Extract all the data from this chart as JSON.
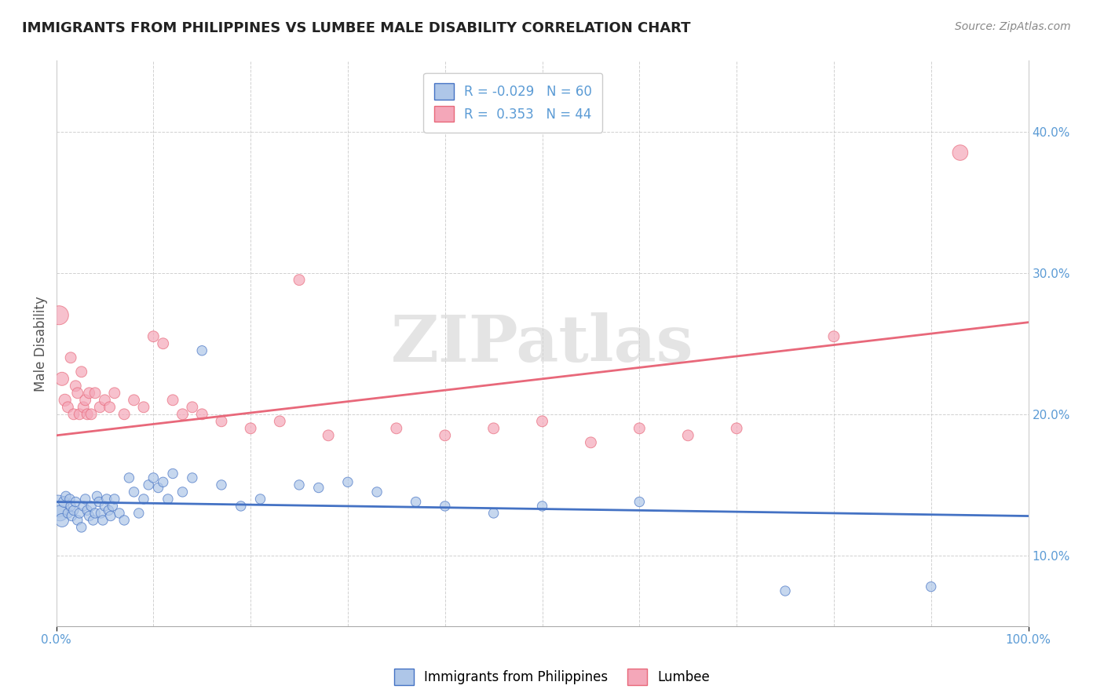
{
  "title": "IMMIGRANTS FROM PHILIPPINES VS LUMBEE MALE DISABILITY CORRELATION CHART",
  "source": "Source: ZipAtlas.com",
  "ylabel": "Male Disability",
  "legend_label1": "Immigrants from Philippines",
  "legend_label2": "Lumbee",
  "r1": -0.029,
  "n1": 60,
  "r2": 0.353,
  "n2": 44,
  "watermark": "ZIPatlas",
  "xlim": [
    0.0,
    100.0
  ],
  "ylim_pct": [
    5.0,
    45.0
  ],
  "yticks": [
    10.0,
    20.0,
    30.0,
    40.0
  ],
  "color_blue": "#AEC6E8",
  "color_pink": "#F4A7B9",
  "color_blue_line": "#4472C4",
  "color_pink_line": "#E8687A",
  "background_color": "#FFFFFF",
  "grid_color": "#CCCCCC",
  "title_color": "#222222",
  "axis_label_color": "#5B9BD5",
  "blue_scatter": [
    [
      0.2,
      13.5
    ],
    [
      0.4,
      13.0
    ],
    [
      0.6,
      12.5
    ],
    [
      0.8,
      13.8
    ],
    [
      1.0,
      14.2
    ],
    [
      1.2,
      13.0
    ],
    [
      1.4,
      14.0
    ],
    [
      1.5,
      13.5
    ],
    [
      1.6,
      12.8
    ],
    [
      1.8,
      13.2
    ],
    [
      2.0,
      13.8
    ],
    [
      2.2,
      12.5
    ],
    [
      2.4,
      13.0
    ],
    [
      2.6,
      12.0
    ],
    [
      2.8,
      13.5
    ],
    [
      3.0,
      14.0
    ],
    [
      3.2,
      13.2
    ],
    [
      3.4,
      12.8
    ],
    [
      3.6,
      13.5
    ],
    [
      3.8,
      12.5
    ],
    [
      4.0,
      13.0
    ],
    [
      4.2,
      14.2
    ],
    [
      4.4,
      13.8
    ],
    [
      4.6,
      13.0
    ],
    [
      4.8,
      12.5
    ],
    [
      5.0,
      13.5
    ],
    [
      5.2,
      14.0
    ],
    [
      5.4,
      13.2
    ],
    [
      5.6,
      12.8
    ],
    [
      5.8,
      13.5
    ],
    [
      6.0,
      14.0
    ],
    [
      6.5,
      13.0
    ],
    [
      7.0,
      12.5
    ],
    [
      7.5,
      15.5
    ],
    [
      8.0,
      14.5
    ],
    [
      8.5,
      13.0
    ],
    [
      9.0,
      14.0
    ],
    [
      9.5,
      15.0
    ],
    [
      10.0,
      15.5
    ],
    [
      10.5,
      14.8
    ],
    [
      11.0,
      15.2
    ],
    [
      11.5,
      14.0
    ],
    [
      12.0,
      15.8
    ],
    [
      13.0,
      14.5
    ],
    [
      14.0,
      15.5
    ],
    [
      15.0,
      24.5
    ],
    [
      17.0,
      15.0
    ],
    [
      19.0,
      13.5
    ],
    [
      21.0,
      14.0
    ],
    [
      25.0,
      15.0
    ],
    [
      27.0,
      14.8
    ],
    [
      30.0,
      15.2
    ],
    [
      33.0,
      14.5
    ],
    [
      37.0,
      13.8
    ],
    [
      40.0,
      13.5
    ],
    [
      45.0,
      13.0
    ],
    [
      50.0,
      13.5
    ],
    [
      60.0,
      13.8
    ],
    [
      75.0,
      7.5
    ],
    [
      90.0,
      7.8
    ]
  ],
  "pink_scatter": [
    [
      0.3,
      27.0
    ],
    [
      0.6,
      22.5
    ],
    [
      0.9,
      21.0
    ],
    [
      1.2,
      20.5
    ],
    [
      1.5,
      24.0
    ],
    [
      1.8,
      20.0
    ],
    [
      2.0,
      22.0
    ],
    [
      2.2,
      21.5
    ],
    [
      2.4,
      20.0
    ],
    [
      2.6,
      23.0
    ],
    [
      2.8,
      20.5
    ],
    [
      3.0,
      21.0
    ],
    [
      3.2,
      20.0
    ],
    [
      3.4,
      21.5
    ],
    [
      3.6,
      20.0
    ],
    [
      4.0,
      21.5
    ],
    [
      4.5,
      20.5
    ],
    [
      5.0,
      21.0
    ],
    [
      5.5,
      20.5
    ],
    [
      6.0,
      21.5
    ],
    [
      7.0,
      20.0
    ],
    [
      8.0,
      21.0
    ],
    [
      9.0,
      20.5
    ],
    [
      10.0,
      25.5
    ],
    [
      11.0,
      25.0
    ],
    [
      12.0,
      21.0
    ],
    [
      13.0,
      20.0
    ],
    [
      14.0,
      20.5
    ],
    [
      15.0,
      20.0
    ],
    [
      17.0,
      19.5
    ],
    [
      20.0,
      19.0
    ],
    [
      23.0,
      19.5
    ],
    [
      25.0,
      29.5
    ],
    [
      28.0,
      18.5
    ],
    [
      35.0,
      19.0
    ],
    [
      40.0,
      18.5
    ],
    [
      45.0,
      19.0
    ],
    [
      50.0,
      19.5
    ],
    [
      55.0,
      18.0
    ],
    [
      60.0,
      19.0
    ],
    [
      65.0,
      18.5
    ],
    [
      70.0,
      19.0
    ],
    [
      80.0,
      25.5
    ],
    [
      93.0,
      38.5
    ]
  ],
  "blue_sizes": [
    400,
    200,
    150,
    100,
    80,
    80,
    80,
    80,
    80,
    80,
    80,
    80,
    80,
    80,
    80,
    80,
    80,
    80,
    80,
    80,
    80,
    80,
    80,
    80,
    80,
    80,
    80,
    80,
    80,
    80,
    80,
    80,
    80,
    80,
    80,
    80,
    80,
    80,
    80,
    80,
    80,
    80,
    80,
    80,
    80,
    80,
    80,
    80,
    80,
    80,
    80,
    80,
    80,
    80,
    80,
    80,
    80,
    80,
    80,
    80
  ],
  "pink_sizes": [
    300,
    150,
    120,
    100,
    100,
    100,
    100,
    100,
    100,
    100,
    100,
    100,
    100,
    100,
    100,
    100,
    100,
    100,
    100,
    100,
    100,
    100,
    100,
    100,
    100,
    100,
    100,
    100,
    100,
    100,
    100,
    100,
    100,
    100,
    100,
    100,
    100,
    100,
    100,
    100,
    100,
    100,
    100,
    200
  ]
}
